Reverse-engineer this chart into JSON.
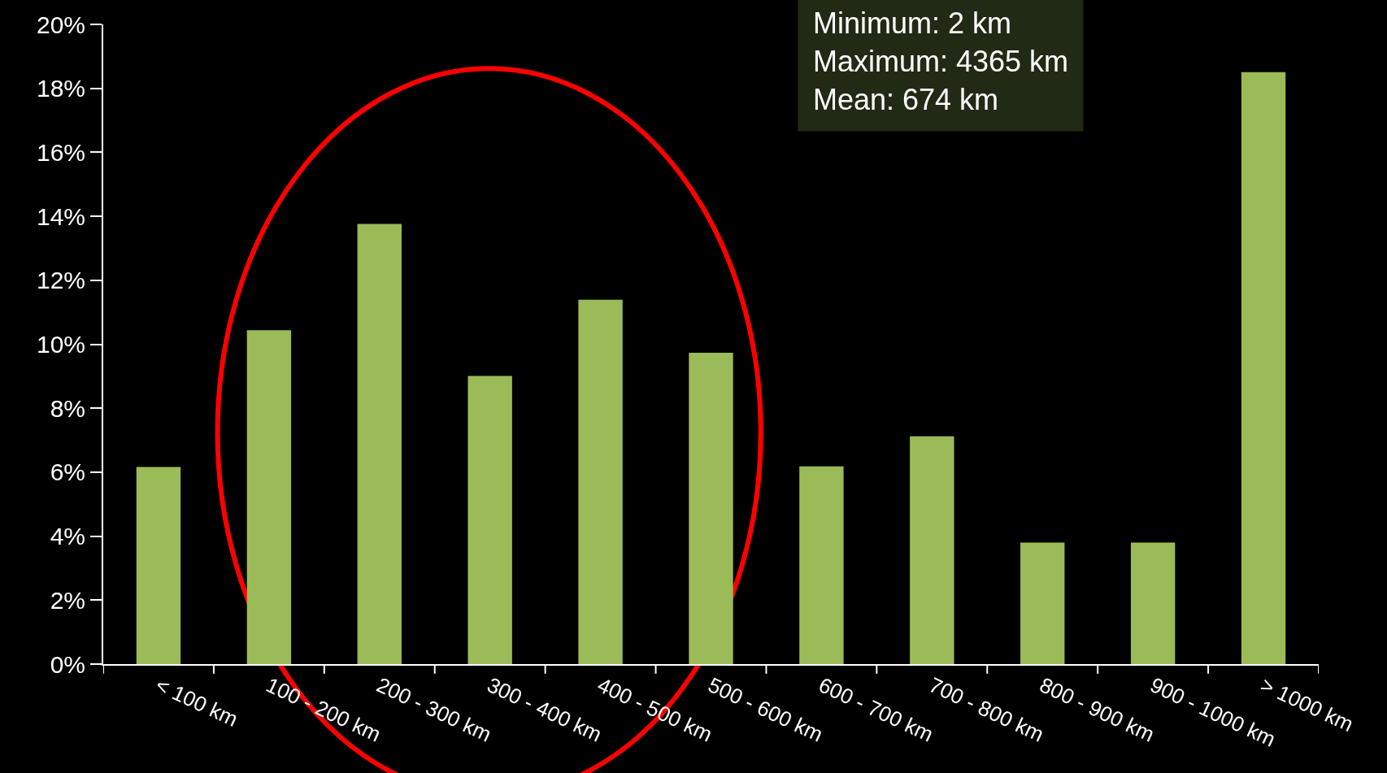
{
  "chart_data": {
    "type": "bar",
    "categories": [
      "< 100 km",
      "100 - 200 km",
      "200 - 300 km",
      "300 - 400 km",
      "400 - 500 km",
      "500 - 600 km",
      "600 - 700 km",
      "700 - 800 km",
      "800 - 900 km",
      "900 - 1000 km",
      "> 1000 km"
    ],
    "values": [
      6.16,
      10.44,
      13.76,
      9.01,
      11.39,
      9.73,
      6.18,
      7.12,
      3.8,
      3.8,
      18.51
    ],
    "color": "#9bbb59",
    "ylim": [
      0,
      20
    ],
    "yticks": [
      {
        "value": 0,
        "label": "0%"
      },
      {
        "value": 2,
        "label": "2%"
      },
      {
        "value": 4,
        "label": "4%"
      },
      {
        "value": 6,
        "label": "6%"
      },
      {
        "value": 8,
        "label": "8%"
      },
      {
        "value": 10,
        "label": "10%"
      },
      {
        "value": 12,
        "label": "12%"
      },
      {
        "value": 14,
        "label": "14%"
      },
      {
        "value": 16,
        "label": "16%"
      },
      {
        "value": 18,
        "label": "18%"
      },
      {
        "value": 20,
        "label": "20%"
      }
    ],
    "grid": false,
    "annotations": [
      "Minimum: 2 km",
      "Maximum: 4365 km",
      "Mean: 674 km"
    ]
  }
}
